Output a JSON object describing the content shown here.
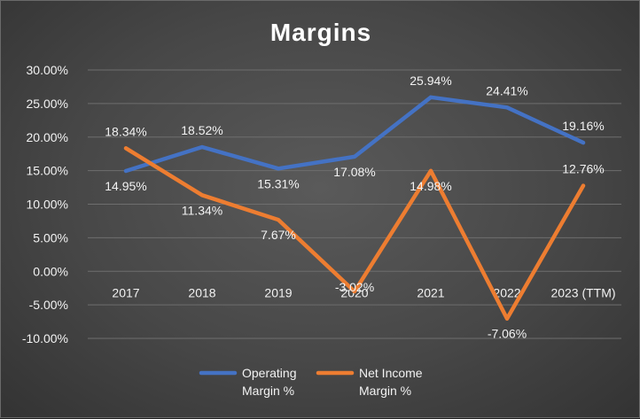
{
  "chart_data": {
    "type": "line",
    "title": "Margins",
    "categories": [
      "2017",
      "2018",
      "2019",
      "2020",
      "2021",
      "2022",
      "2023 (TTM)"
    ],
    "ylim": [
      -10,
      30
    ],
    "ytick_step": 5,
    "ytick_labels": [
      "30.00%",
      "25.00%",
      "20.00%",
      "15.00%",
      "10.00%",
      "5.00%",
      "0.00%",
      "-5.00%",
      "-10.00%"
    ],
    "grid": true,
    "legend_position": "bottom",
    "series": [
      {
        "name": "Operating Margin %",
        "legend_lines": [
          "Operating",
          "Margin %"
        ],
        "color": "#4472c4",
        "values": [
          14.95,
          18.52,
          15.31,
          17.08,
          25.94,
          24.41,
          19.16
        ],
        "labels": [
          "14.95%",
          "18.52%",
          "15.31%",
          "17.08%",
          "25.94%",
          "24.41%",
          "19.16%"
        ]
      },
      {
        "name": "Net Income Margin %",
        "legend_lines": [
          "Net Income",
          "Margin %"
        ],
        "color": "#ed7d31",
        "values": [
          18.34,
          11.34,
          7.67,
          -3.02,
          14.98,
          -7.06,
          12.76
        ],
        "labels": [
          "18.34%",
          "11.34%",
          "7.67%",
          "-3.02%",
          "14.98%",
          "-7.06%",
          "12.76%"
        ]
      }
    ]
  }
}
